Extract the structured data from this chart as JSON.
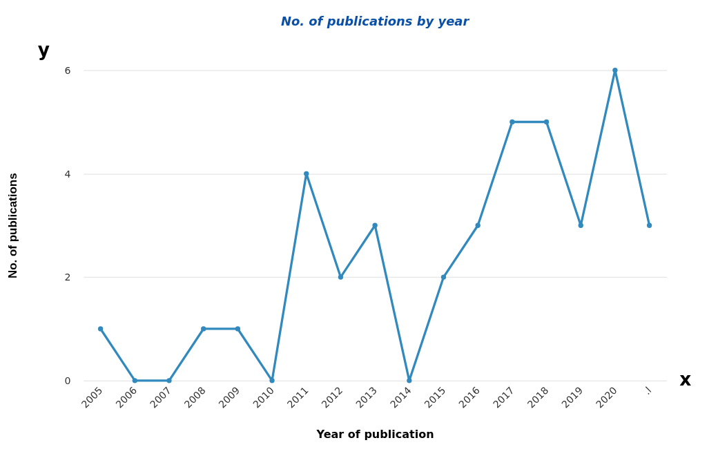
{
  "chart_data": {
    "type": "line",
    "title": "No. of publications by year",
    "xlabel": "Year of publication",
    "ylabel": "No. of publications",
    "categories": [
      "2005",
      "2006",
      "2007",
      "2008",
      "2009",
      "2010",
      "2011",
      "2012",
      "2013",
      "2014",
      "2015",
      "2016",
      "2017",
      "2018",
      "2019",
      "2020",
      ".l"
    ],
    "series": [
      {
        "color": "#3289bd",
        "values": [
          1,
          0,
          0,
          1,
          1,
          0,
          4,
          2,
          3,
          0,
          2,
          3,
          5,
          5,
          3,
          6,
          3
        ]
      }
    ],
    "ylim": [
      0,
      6
    ],
    "yticks": [
      0,
      2,
      4,
      6
    ],
    "grid": "y",
    "marker": "circle",
    "line_style": "solid",
    "annotations": [
      "y",
      "x"
    ]
  }
}
